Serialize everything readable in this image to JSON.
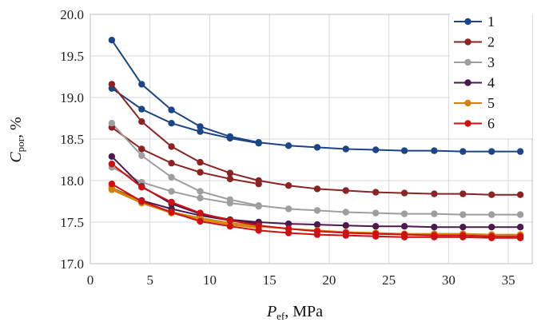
{
  "chart_data": {
    "type": "line",
    "title": "",
    "xlabel": {
      "main": "P",
      "sub": "ef",
      "rest": ", MPa"
    },
    "ylabel": {
      "main": "C",
      "sub": "por",
      "rest": ",  %"
    },
    "xlim": [
      0,
      37
    ],
    "ylim": [
      17.0,
      20.0
    ],
    "xticks": [
      0,
      5,
      10,
      15,
      20,
      25,
      30,
      35
    ],
    "yticks": [
      "17.0",
      "17.5",
      "18.0",
      "18.5",
      "19.0",
      "19.5",
      "20.0"
    ],
    "grid": true,
    "legend_position": "top-right",
    "x_main": [
      1.8,
      4.3,
      6.8,
      9.2,
      11.7,
      14.1,
      16.6,
      19.0,
      21.4,
      23.9,
      26.3,
      28.8,
      31.2,
      33.6,
      36.0
    ],
    "x_short": [
      1.8,
      4.3,
      6.8,
      9.2,
      11.7,
      14.1
    ],
    "series": [
      {
        "name": "1",
        "color": "#1c4587",
        "a": [
          19.69,
          19.16,
          18.85,
          18.65,
          18.53,
          18.46,
          18.42,
          18.4,
          18.38,
          18.37,
          18.36,
          18.36,
          18.35,
          18.35,
          18.35
        ],
        "b": [
          19.11,
          18.86,
          18.69,
          18.59,
          18.51,
          18.45
        ]
      },
      {
        "name": "2",
        "color": "#8b2323",
        "a": [
          19.16,
          18.71,
          18.41,
          18.22,
          18.09,
          18.0,
          17.94,
          17.9,
          17.88,
          17.86,
          17.85,
          17.84,
          17.84,
          17.83,
          17.83
        ],
        "b": [
          18.64,
          18.38,
          18.21,
          18.1,
          18.02,
          17.96
        ]
      },
      {
        "name": "3",
        "color": "#9e9e9e",
        "a": [
          18.69,
          18.3,
          18.04,
          17.87,
          17.77,
          17.7,
          17.66,
          17.64,
          17.62,
          17.61,
          17.6,
          17.6,
          17.59,
          17.59,
          17.59
        ],
        "b": [
          18.16,
          17.98,
          17.87,
          17.79,
          17.73,
          17.69
        ]
      },
      {
        "name": "4",
        "color": "#4a1a4f",
        "a": [
          18.29,
          17.93,
          17.72,
          17.6,
          17.53,
          17.5,
          17.48,
          17.47,
          17.46,
          17.45,
          17.45,
          17.44,
          17.44,
          17.44,
          17.44
        ],
        "b": [
          17.91,
          17.76,
          17.66,
          17.58,
          17.52,
          17.48
        ]
      },
      {
        "name": "5",
        "color": "#d4820a",
        "a": [
          17.91,
          17.74,
          17.62,
          17.55,
          17.49,
          17.45,
          17.42,
          17.4,
          17.38,
          17.37,
          17.36,
          17.36,
          17.36,
          17.35,
          17.35
        ],
        "b": [
          17.89,
          17.73,
          17.61,
          17.53,
          17.47,
          17.43
        ]
      },
      {
        "name": "6",
        "color": "#d01010",
        "a": [
          18.2,
          17.92,
          17.74,
          17.61,
          17.52,
          17.46,
          17.42,
          17.39,
          17.37,
          17.36,
          17.35,
          17.34,
          17.34,
          17.33,
          17.33
        ],
        "b": [
          17.96,
          17.75,
          17.62,
          17.51,
          17.45,
          17.4,
          17.37,
          17.35,
          17.34,
          17.33,
          17.32,
          17.32,
          17.32,
          17.31,
          17.31
        ]
      }
    ]
  }
}
